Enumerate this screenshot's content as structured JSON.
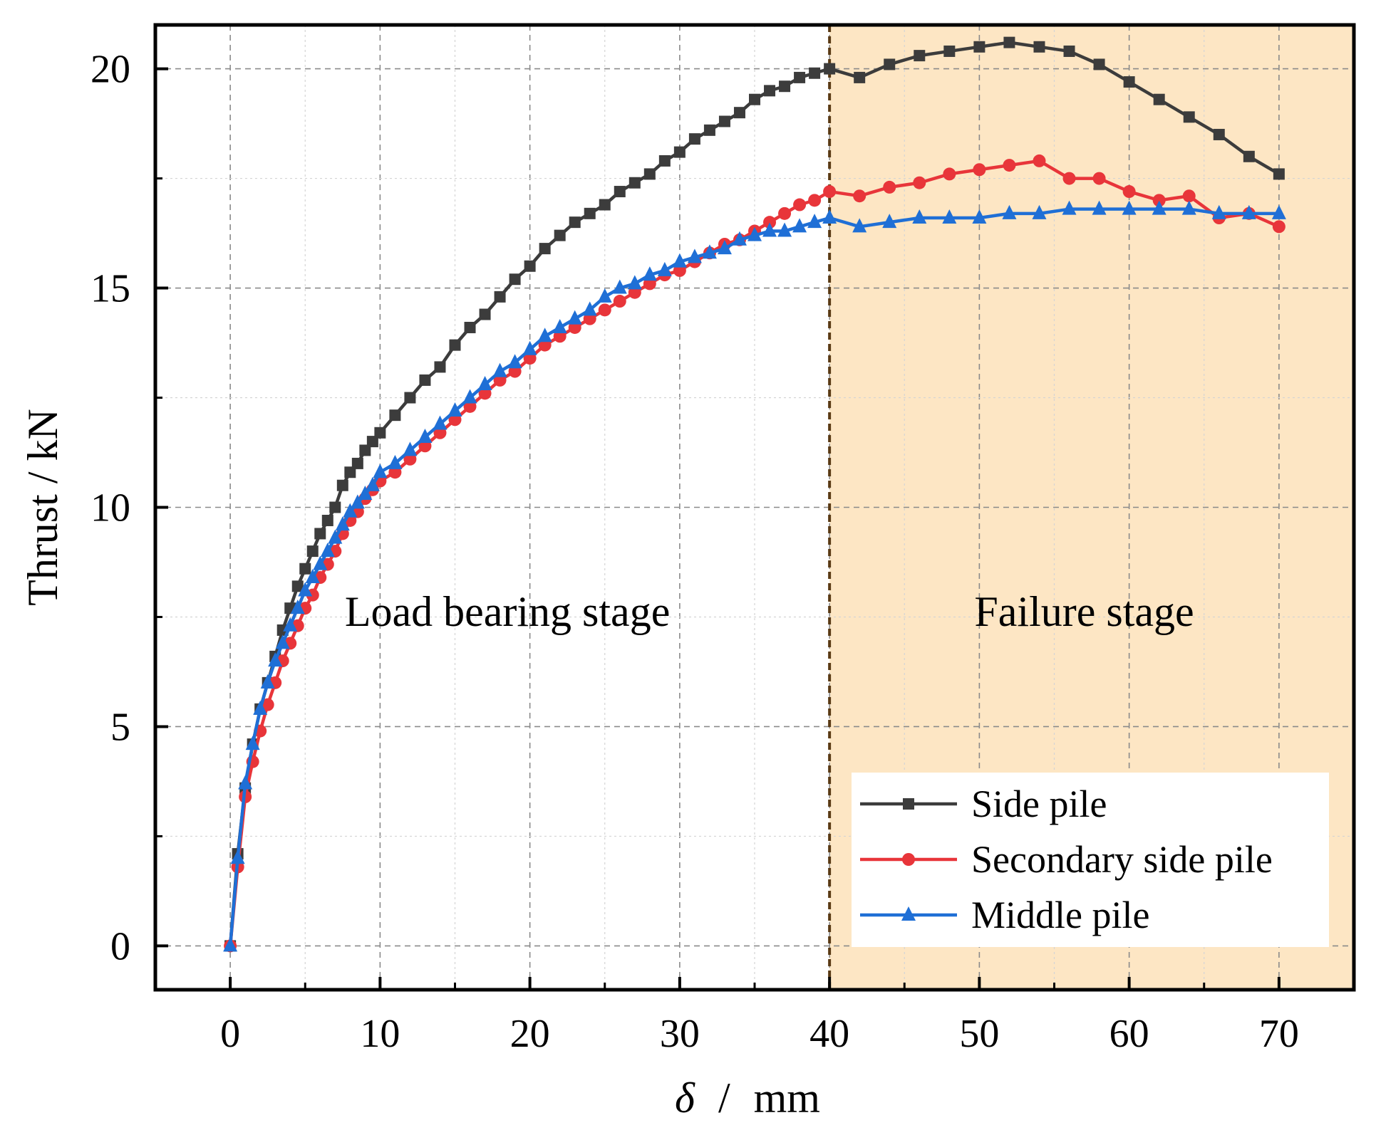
{
  "chart_data": {
    "type": "line",
    "xlabel_symbol": "δ",
    "xlabel_sep": "/",
    "xlabel_unit": "mm",
    "ylabel": "Thrust  / kN",
    "xlim": [
      -5,
      75
    ],
    "ylim": [
      -1,
      21
    ],
    "xticks": [
      "0",
      "10",
      "20",
      "30",
      "40",
      "50",
      "60",
      "70"
    ],
    "yticks": [
      "0",
      "5",
      "10",
      "15",
      "20"
    ],
    "grid": true,
    "legend_position": "bottom-right",
    "regions": [
      {
        "name": "load-bearing",
        "label": "Load bearing stage",
        "x_start": -5,
        "x_end": 40
      },
      {
        "name": "failure",
        "label": "Failure stage",
        "x_start": 40,
        "x_end": 75,
        "fill": "#fde6c4"
      }
    ],
    "boundary_x": 40,
    "series": [
      {
        "name": "Side pile",
        "color": "#3c3c3c",
        "marker": "square",
        "x": [
          0,
          0.5,
          1,
          1.5,
          2,
          2.5,
          3,
          3.5,
          4,
          4.5,
          5,
          5.5,
          6,
          6.5,
          7,
          7.5,
          8,
          8.5,
          9,
          9.5,
          10,
          11,
          12,
          13,
          14,
          15,
          16,
          17,
          18,
          19,
          20,
          21,
          22,
          23,
          24,
          25,
          26,
          27,
          28,
          29,
          30,
          31,
          32,
          33,
          34,
          35,
          36,
          37,
          38,
          39,
          40,
          42,
          44,
          46,
          48,
          50,
          52,
          54,
          56,
          58,
          60,
          62,
          64,
          66,
          68,
          70
        ],
        "y": [
          0,
          2.1,
          3.6,
          4.6,
          5.4,
          6.0,
          6.6,
          7.2,
          7.7,
          8.2,
          8.6,
          9.0,
          9.4,
          9.7,
          10.0,
          10.5,
          10.8,
          11.0,
          11.3,
          11.5,
          11.7,
          12.1,
          12.5,
          12.9,
          13.2,
          13.7,
          14.1,
          14.4,
          14.8,
          15.2,
          15.5,
          15.9,
          16.2,
          16.5,
          16.7,
          16.9,
          17.2,
          17.4,
          17.6,
          17.9,
          18.1,
          18.4,
          18.6,
          18.8,
          19.0,
          19.3,
          19.5,
          19.6,
          19.8,
          19.9,
          20.0,
          19.8,
          20.1,
          20.3,
          20.4,
          20.5,
          20.6,
          20.5,
          20.4,
          20.1,
          19.7,
          19.3,
          18.9,
          18.5,
          18.0,
          17.6
        ]
      },
      {
        "name": "Secondary side pile",
        "color": "#e8353a",
        "marker": "circle",
        "x": [
          0,
          0.5,
          1,
          1.5,
          2,
          2.5,
          3,
          3.5,
          4,
          4.5,
          5,
          5.5,
          6,
          6.5,
          7,
          7.5,
          8,
          8.5,
          9,
          9.5,
          10,
          11,
          12,
          13,
          14,
          15,
          16,
          17,
          18,
          19,
          20,
          21,
          22,
          23,
          24,
          25,
          26,
          27,
          28,
          29,
          30,
          31,
          32,
          33,
          34,
          35,
          36,
          37,
          38,
          39,
          40,
          42,
          44,
          46,
          48,
          50,
          52,
          54,
          56,
          58,
          60,
          62,
          64,
          66,
          68,
          70
        ],
        "y": [
          0,
          1.8,
          3.4,
          4.2,
          4.9,
          5.5,
          6.0,
          6.5,
          6.9,
          7.3,
          7.7,
          8.0,
          8.4,
          8.7,
          9.0,
          9.4,
          9.7,
          9.9,
          10.2,
          10.4,
          10.6,
          10.8,
          11.1,
          11.4,
          11.7,
          12.0,
          12.3,
          12.6,
          12.9,
          13.1,
          13.4,
          13.7,
          13.9,
          14.1,
          14.3,
          14.5,
          14.7,
          14.9,
          15.1,
          15.3,
          15.4,
          15.6,
          15.8,
          16.0,
          16.1,
          16.3,
          16.5,
          16.7,
          16.9,
          17.0,
          17.2,
          17.1,
          17.3,
          17.4,
          17.6,
          17.7,
          17.8,
          17.9,
          17.5,
          17.5,
          17.2,
          17.0,
          17.1,
          16.6,
          16.7,
          16.4
        ]
      },
      {
        "name": "Middle pile",
        "color": "#1f6fd6",
        "marker": "triangle",
        "x": [
          0,
          0.5,
          1,
          1.5,
          2,
          2.5,
          3,
          3.5,
          4,
          4.5,
          5,
          5.5,
          6,
          6.5,
          7,
          7.5,
          8,
          8.5,
          9,
          9.5,
          10,
          11,
          12,
          13,
          14,
          15,
          16,
          17,
          18,
          19,
          20,
          21,
          22,
          23,
          24,
          25,
          26,
          27,
          28,
          29,
          30,
          31,
          32,
          33,
          34,
          35,
          36,
          37,
          38,
          39,
          40,
          42,
          44,
          46,
          48,
          50,
          52,
          54,
          56,
          58,
          60,
          62,
          64,
          66,
          68,
          70
        ],
        "y": [
          0,
          2.0,
          3.7,
          4.6,
          5.4,
          6.0,
          6.5,
          6.9,
          7.3,
          7.7,
          8.1,
          8.4,
          8.7,
          9.0,
          9.3,
          9.6,
          9.9,
          10.1,
          10.3,
          10.5,
          10.8,
          11.0,
          11.3,
          11.6,
          11.9,
          12.2,
          12.5,
          12.8,
          13.1,
          13.3,
          13.6,
          13.9,
          14.1,
          14.3,
          14.5,
          14.8,
          15.0,
          15.1,
          15.3,
          15.4,
          15.6,
          15.7,
          15.8,
          15.9,
          16.1,
          16.2,
          16.3,
          16.3,
          16.4,
          16.5,
          16.6,
          16.4,
          16.5,
          16.6,
          16.6,
          16.6,
          16.7,
          16.7,
          16.8,
          16.8,
          16.8,
          16.8,
          16.8,
          16.7,
          16.7,
          16.7
        ]
      }
    ]
  }
}
